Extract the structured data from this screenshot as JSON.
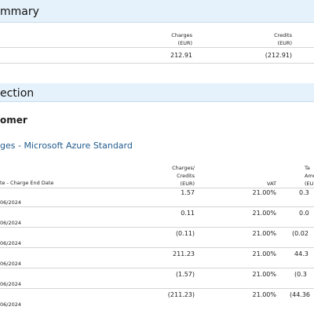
{
  "summary": {
    "title": "mmary",
    "col_charges_line1": "Charges",
    "col_charges_line2": "(EUR)",
    "col_credits_line1": "Credits",
    "col_credits_line2": "(EUR)",
    "charges_value": "212.91",
    "credits_value": "(212.91)"
  },
  "section2": {
    "title": "ection",
    "customer": "omer",
    "service": "ges - Microsoft Azure Standard",
    "col_date": "te - Charge End Date",
    "col_cc_line1": "Charges/",
    "col_cc_line2": "Credits",
    "col_cc_line3": "(EUR)",
    "col_vat": "VAT",
    "col_tax_line1": "Ta",
    "col_tax_line2": "Amou",
    "col_tax_line3": "(EU",
    "rows": [
      {
        "date": "06/2024",
        "amount": "1.57",
        "vat": "21.00%",
        "tax": "0.3"
      },
      {
        "date": "06/2024",
        "amount": "0.11",
        "vat": "21.00%",
        "tax": "0.0"
      },
      {
        "date": "06/2024",
        "amount": "(0.11)",
        "vat": "21.00%",
        "tax": "(0.02"
      },
      {
        "date": "06/2024",
        "amount": "211.23",
        "vat": "21.00%",
        "tax": "44.3"
      },
      {
        "date": "06/2024",
        "amount": "(1.57)",
        "vat": "21.00%",
        "tax": "(0.3"
      },
      {
        "date": "06/2024",
        "amount": "(211.23)",
        "vat": "21.00%",
        "tax": "(44.36"
      }
    ]
  }
}
